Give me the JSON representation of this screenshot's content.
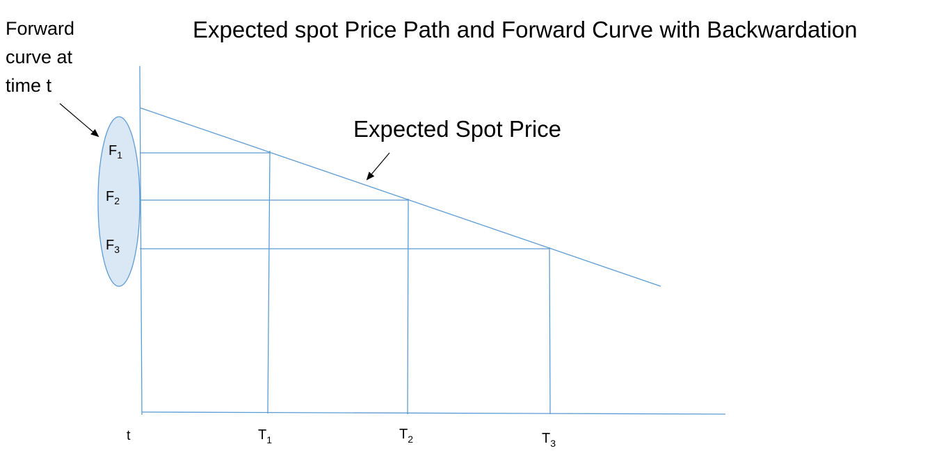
{
  "title": "Expected spot Price Path and Forward Curve with Backwardation",
  "forward_curve_label": {
    "lines": [
      "Forward",
      "curve at",
      "time t"
    ]
  },
  "expected_spot_label": "Expected Spot Price",
  "forward_prices": [
    {
      "letter": "F",
      "sub": "1"
    },
    {
      "letter": "F",
      "sub": "2"
    },
    {
      "letter": "F",
      "sub": "3"
    }
  ],
  "time_labels": [
    {
      "letter": "t",
      "sub": ""
    },
    {
      "letter": "T",
      "sub": "1"
    },
    {
      "letter": "T",
      "sub": "2"
    },
    {
      "letter": "T",
      "sub": "3"
    }
  ],
  "colors": {
    "line": "#5b9bd5",
    "ellipse_fill": "#dae7f5",
    "ellipse_stroke": "#5b9bd5",
    "text": "#000000"
  }
}
